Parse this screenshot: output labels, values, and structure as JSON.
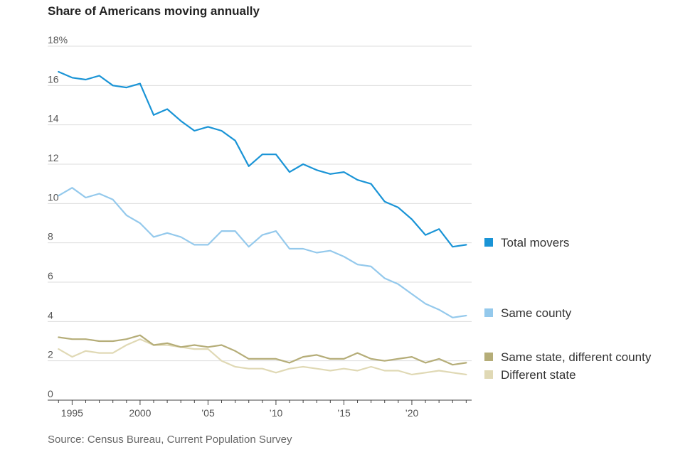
{
  "chart_data": {
    "type": "line",
    "title": "Share of Americans moving annually",
    "source": "Source: Census Bureau, Current Population Survey",
    "ylim": [
      0,
      18
    ],
    "xlim": [
      1993.2,
      2024.4
    ],
    "y_ticks": [
      {
        "value": 0,
        "label": "0"
      },
      {
        "value": 2,
        "label": "2"
      },
      {
        "value": 4,
        "label": "4"
      },
      {
        "value": 6,
        "label": "6"
      },
      {
        "value": 8,
        "label": "8"
      },
      {
        "value": 10,
        "label": "10"
      },
      {
        "value": 12,
        "label": "12"
      },
      {
        "value": 14,
        "label": "14"
      },
      {
        "value": 16,
        "label": "16"
      },
      {
        "value": 18,
        "label": "18%"
      }
    ],
    "x_ticks": [
      {
        "value": 1995,
        "label": "1995"
      },
      {
        "value": 2000,
        "label": "2000"
      },
      {
        "value": 2005,
        "label": "’05"
      },
      {
        "value": 2010,
        "label": "’10"
      },
      {
        "value": 2015,
        "label": "’15"
      },
      {
        "value": 2020,
        "label": "’20"
      }
    ],
    "x": [
      1994,
      1995,
      1996,
      1997,
      1998,
      1999,
      2000,
      2001,
      2002,
      2003,
      2004,
      2005,
      2006,
      2007,
      2008,
      2009,
      2010,
      2011,
      2012,
      2013,
      2014,
      2015,
      2016,
      2017,
      2018,
      2019,
      2020,
      2021,
      2022,
      2023,
      2024
    ],
    "series": [
      {
        "name": "Total movers",
        "color": "#1a94d6",
        "values": [
          16.7,
          16.4,
          16.3,
          16.5,
          16.0,
          15.9,
          16.1,
          14.5,
          14.8,
          14.2,
          13.7,
          13.9,
          13.7,
          13.2,
          11.9,
          12.5,
          12.5,
          11.6,
          12.0,
          11.7,
          11.5,
          11.6,
          11.2,
          11.0,
          10.1,
          9.8,
          9.2,
          8.4,
          8.7,
          7.8,
          7.9
        ]
      },
      {
        "name": "Same county",
        "color": "#94c9ec",
        "values": [
          10.4,
          10.8,
          10.3,
          10.5,
          10.2,
          9.4,
          9.0,
          8.3,
          8.5,
          8.3,
          7.9,
          7.9,
          8.6,
          8.6,
          7.8,
          8.4,
          8.6,
          7.7,
          7.7,
          7.5,
          7.6,
          7.3,
          6.9,
          6.8,
          6.2,
          5.9,
          5.4,
          4.9,
          4.6,
          4.2,
          4.3
        ]
      },
      {
        "name": "Same state, different county",
        "color": "#b5ad78",
        "values": [
          3.2,
          3.1,
          3.1,
          3.0,
          3.0,
          3.1,
          3.3,
          2.8,
          2.9,
          2.7,
          2.8,
          2.7,
          2.8,
          2.5,
          2.1,
          2.1,
          2.1,
          1.9,
          2.2,
          2.3,
          2.1,
          2.1,
          2.4,
          2.1,
          2.0,
          2.1,
          2.2,
          1.9,
          2.1,
          1.8,
          1.9
        ]
      },
      {
        "name": "Different state",
        "color": "#e0d9b5",
        "values": [
          2.6,
          2.2,
          2.5,
          2.4,
          2.4,
          2.8,
          3.1,
          2.8,
          2.8,
          2.7,
          2.6,
          2.6,
          2.0,
          1.7,
          1.6,
          1.6,
          1.4,
          1.6,
          1.7,
          1.6,
          1.5,
          1.6,
          1.5,
          1.7,
          1.5,
          1.5,
          1.3,
          1.4,
          1.5,
          1.4,
          1.3
        ]
      }
    ],
    "legend": [
      {
        "label": "Total movers",
        "color": "#1a94d6"
      },
      {
        "label": "Same county",
        "color": "#94c9ec"
      },
      {
        "label": "Same state, different county",
        "color": "#b5ad78"
      },
      {
        "label": "Different state",
        "color": "#e0d9b5"
      }
    ]
  }
}
